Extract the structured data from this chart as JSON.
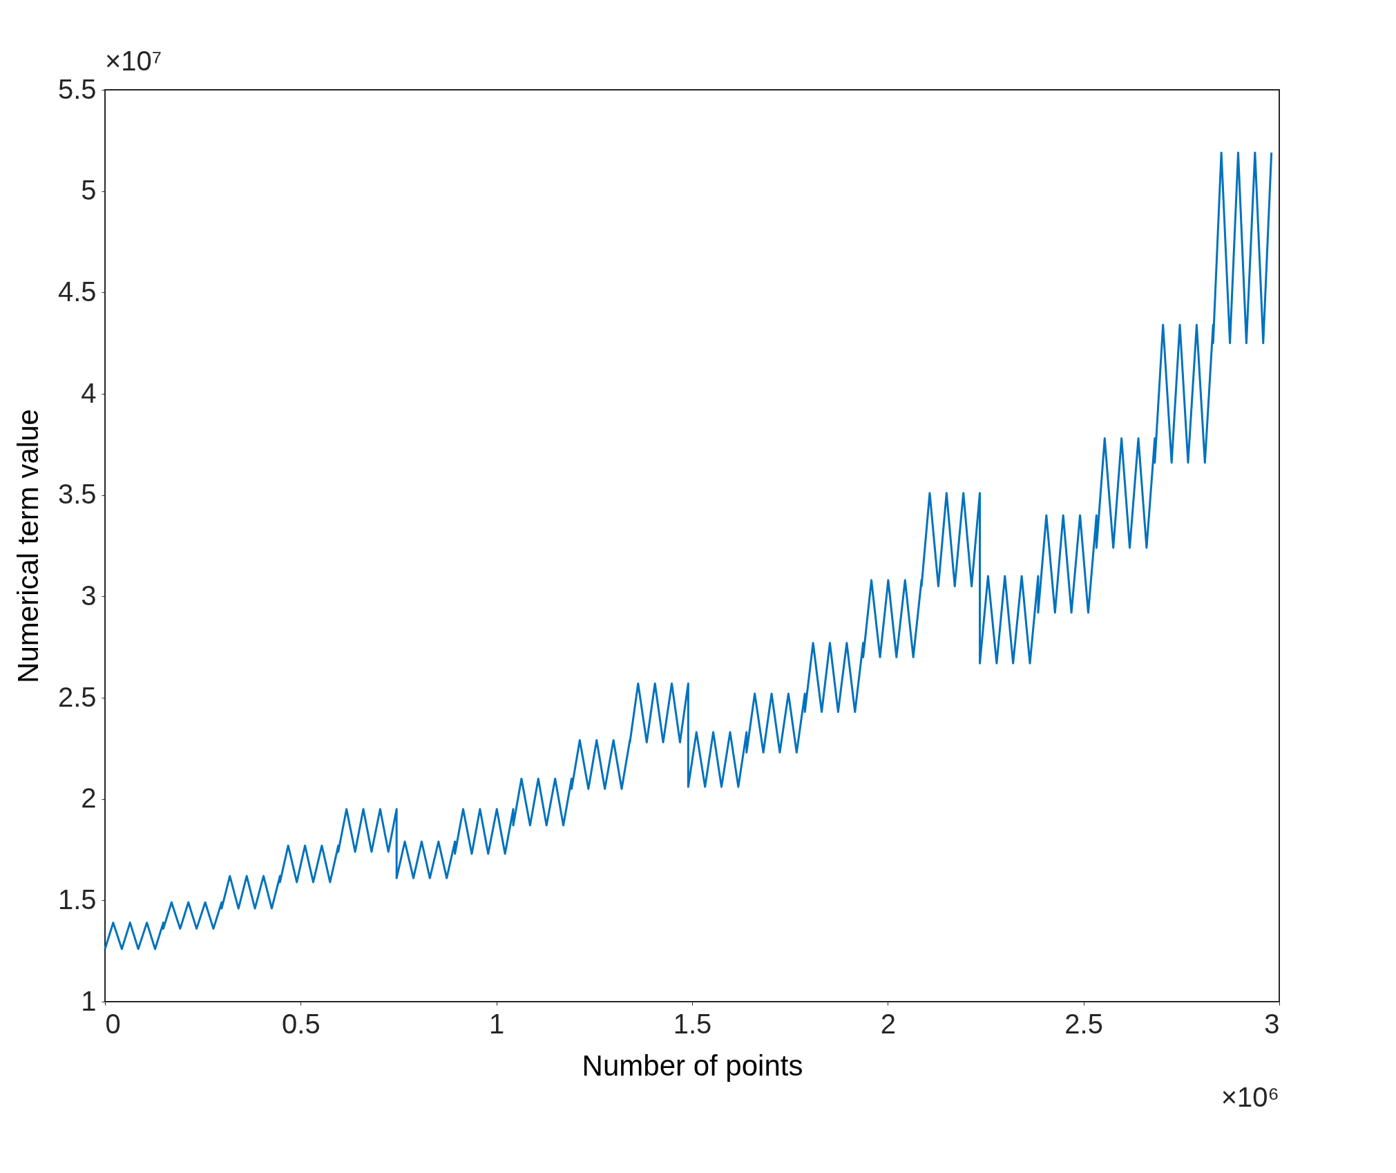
{
  "chart_data": {
    "type": "line",
    "xlabel": "Number of points",
    "ylabel": "Numerical term value",
    "annotations": [
      "×10⁷",
      "×10⁶"
    ],
    "xlim": [
      0,
      3
    ],
    "xticks": [
      0,
      0.5,
      1,
      1.5,
      2,
      2.5,
      3
    ],
    "ylim": [
      1,
      5.5
    ],
    "yticks": [
      1,
      1.5,
      2,
      2.5,
      3,
      3.5,
      4,
      4.5,
      5,
      5.5
    ],
    "grid": false,
    "marker": "none",
    "line_style": "solid",
    "series": [
      {
        "color": "#0072bd",
        "x": [
          0,
          0.021,
          0.043,
          0.064,
          0.085,
          0.107,
          0.128,
          0.149,
          0.149,
          0.17,
          0.192,
          0.213,
          0.234,
          0.256,
          0.277,
          0.298,
          0.298,
          0.319,
          0.341,
          0.362,
          0.383,
          0.405,
          0.426,
          0.447,
          0.447,
          0.468,
          0.49,
          0.511,
          0.532,
          0.554,
          0.575,
          0.596,
          0.596,
          0.617,
          0.639,
          0.66,
          0.681,
          0.703,
          0.724,
          0.745,
          0.745,
          0.766,
          0.788,
          0.809,
          0.83,
          0.852,
          0.873,
          0.894,
          0.894,
          0.915,
          0.937,
          0.958,
          0.979,
          1.001,
          1.022,
          1.043,
          1.043,
          1.064,
          1.086,
          1.107,
          1.128,
          1.15,
          1.171,
          1.192,
          1.192,
          1.213,
          1.235,
          1.256,
          1.277,
          1.299,
          1.32,
          1.341,
          1.341,
          1.362,
          1.384,
          1.405,
          1.426,
          1.448,
          1.469,
          1.49,
          1.49,
          1.511,
          1.533,
          1.554,
          1.575,
          1.597,
          1.618,
          1.639,
          1.639,
          1.66,
          1.682,
          1.703,
          1.724,
          1.746,
          1.767,
          1.788,
          1.788,
          1.809,
          1.831,
          1.852,
          1.873,
          1.895,
          1.916,
          1.937,
          1.937,
          1.958,
          1.98,
          2.001,
          2.022,
          2.044,
          2.065,
          2.086,
          2.086,
          2.107,
          2.129,
          2.15,
          2.171,
          2.193,
          2.214,
          2.235,
          2.235,
          2.256,
          2.278,
          2.299,
          2.32,
          2.342,
          2.363,
          2.384,
          2.384,
          2.405,
          2.427,
          2.448,
          2.469,
          2.491,
          2.512,
          2.533,
          2.533,
          2.554,
          2.576,
          2.597,
          2.618,
          2.64,
          2.661,
          2.682,
          2.682,
          2.703,
          2.725,
          2.746,
          2.767,
          2.789,
          2.81,
          2.831,
          2.831,
          2.852,
          2.874,
          2.895,
          2.916,
          2.938,
          2.959,
          2.98
        ],
        "values": [
          1.26,
          1.39,
          1.26,
          1.39,
          1.26,
          1.39,
          1.26,
          1.39,
          1.36,
          1.49,
          1.36,
          1.49,
          1.36,
          1.49,
          1.36,
          1.49,
          1.46,
          1.62,
          1.46,
          1.62,
          1.46,
          1.62,
          1.46,
          1.62,
          1.59,
          1.77,
          1.59,
          1.77,
          1.59,
          1.77,
          1.59,
          1.77,
          1.74,
          1.95,
          1.74,
          1.95,
          1.74,
          1.95,
          1.74,
          1.95,
          1.61,
          1.79,
          1.61,
          1.79,
          1.61,
          1.79,
          1.61,
          1.79,
          1.73,
          1.95,
          1.73,
          1.95,
          1.73,
          1.95,
          1.73,
          1.95,
          1.87,
          2.1,
          1.87,
          2.1,
          1.87,
          2.1,
          1.87,
          2.1,
          2.05,
          2.29,
          2.05,
          2.29,
          2.05,
          2.29,
          2.05,
          2.29,
          2.28,
          2.57,
          2.28,
          2.57,
          2.28,
          2.57,
          2.28,
          2.57,
          2.06,
          2.33,
          2.06,
          2.33,
          2.06,
          2.33,
          2.06,
          2.33,
          2.23,
          2.52,
          2.23,
          2.52,
          2.23,
          2.52,
          2.23,
          2.52,
          2.43,
          2.77,
          2.43,
          2.77,
          2.43,
          2.77,
          2.43,
          2.77,
          2.7,
          3.08,
          2.7,
          3.08,
          2.7,
          3.08,
          2.7,
          3.08,
          3.05,
          3.51,
          3.05,
          3.51,
          3.05,
          3.51,
          3.05,
          3.51,
          2.67,
          3.1,
          2.67,
          3.1,
          2.67,
          3.1,
          2.67,
          3.1,
          2.92,
          3.4,
          2.92,
          3.4,
          2.92,
          3.4,
          2.92,
          3.4,
          3.24,
          3.78,
          3.24,
          3.78,
          3.24,
          3.78,
          3.24,
          3.78,
          3.66,
          4.34,
          3.66,
          4.34,
          3.66,
          4.34,
          3.66,
          4.34,
          4.25,
          5.19,
          4.25,
          5.19,
          4.25,
          5.19,
          4.25,
          5.19
        ]
      }
    ]
  }
}
